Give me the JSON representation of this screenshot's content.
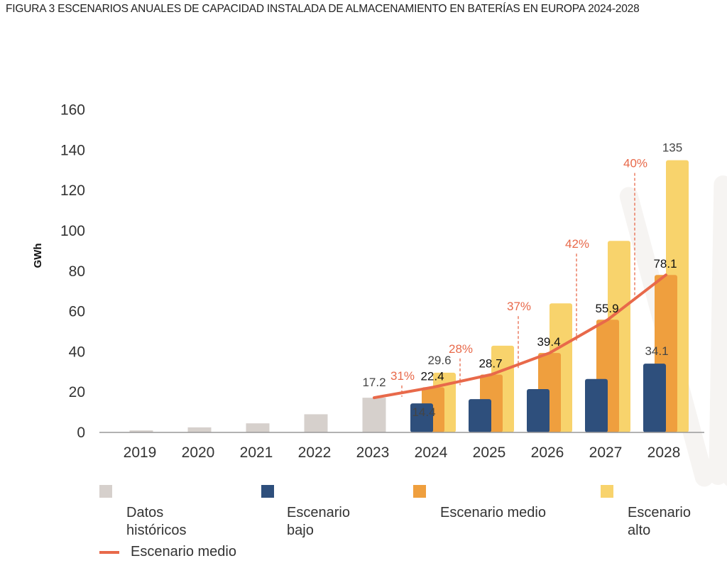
{
  "figure": {
    "tag": "FIGURA 3",
    "title": "ESCENARIOS ANUALES DE CAPACIDAD INSTALADA DE ALMACENAMIENTO EN BATERÍAS EN EUROPA 2024-2028"
  },
  "colors": {
    "historic": "#d6d0cc",
    "low": "#2e4f7c",
    "mid": "#ef9f3e",
    "high": "#f8d36c",
    "line": "#e8694a",
    "axis": "#999999",
    "pct": "#e8694a"
  },
  "legend": {
    "historic": "Datos históricos",
    "low": "Escenario bajo",
    "mid": "Escenario medio",
    "high": "Escenario alto",
    "line": "Escenario medio"
  },
  "chart_data": {
    "type": "bar",
    "title": "ESCENARIOS ANUALES DE CAPACIDAD INSTALADA DE ALMACENAMIENTO EN BATERÍAS EN EUROPA 2024-2028",
    "xlabel": "",
    "ylabel": "GWh",
    "ylim": [
      0,
      160
    ],
    "yticks": [
      0,
      20,
      40,
      60,
      80,
      100,
      120,
      140,
      160
    ],
    "categories": [
      "2019",
      "2020",
      "2021",
      "2022",
      "2023",
      "2024",
      "2025",
      "2026",
      "2027",
      "2028"
    ],
    "historic": {
      "name": "Datos históricos",
      "values": [
        1,
        2.5,
        4.5,
        9,
        17.2,
        null,
        null,
        null,
        null,
        null
      ],
      "labels": [
        null,
        null,
        null,
        null,
        "17.2",
        null,
        null,
        null,
        null,
        null
      ]
    },
    "series": [
      {
        "name": "Escenario bajo",
        "values": [
          null,
          null,
          null,
          null,
          null,
          14.4,
          16.5,
          21.5,
          26.5,
          34.1
        ],
        "labels": [
          null,
          null,
          null,
          null,
          null,
          "14.4",
          null,
          null,
          null,
          "34.1"
        ]
      },
      {
        "name": "Escenario medio",
        "values": [
          null,
          null,
          null,
          null,
          null,
          22.4,
          28.7,
          39.4,
          55.9,
          78.1
        ],
        "labels": [
          null,
          null,
          null,
          null,
          null,
          "22.4",
          "28.7",
          "39.4",
          "55.9",
          "78.1"
        ]
      },
      {
        "name": "Escenario alto",
        "values": [
          null,
          null,
          null,
          null,
          null,
          29.6,
          43,
          64,
          95,
          135
        ],
        "labels": [
          null,
          null,
          null,
          null,
          null,
          "29.6",
          null,
          null,
          null,
          "135"
        ]
      }
    ],
    "line": {
      "name": "Escenario medio",
      "values": [
        null,
        null,
        null,
        null,
        17.2,
        22.4,
        28.7,
        39.4,
        55.9,
        78.1
      ]
    },
    "growth": [
      "31%",
      "28%",
      "37%",
      "42%",
      "40%"
    ],
    "legend_position": "bottom"
  }
}
